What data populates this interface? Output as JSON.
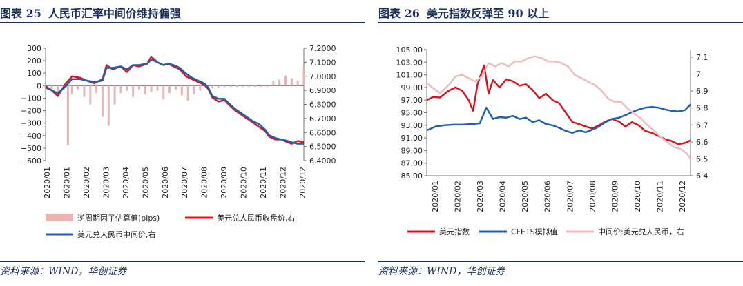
{
  "left": {
    "title_no": "图表 25",
    "title_text": "人民币汇率中间价维持偏强",
    "source": "资料来源：WIND，华创证券",
    "chart_data": {
      "type": "line",
      "categories": [
        "2020/01",
        "2020/01",
        "2020/02",
        "2020/03",
        "2020/04",
        "2020/05",
        "2020/06",
        "2020/07",
        "2020/08",
        "2020/09",
        "2020/10",
        "2020/11",
        "2020/12",
        "2020/12"
      ],
      "y_left_ticks": [
        "300",
        "200",
        "100",
        "0",
        "−100",
        "−200",
        "−300",
        "−400",
        "−500",
        "−600"
      ],
      "y_right_ticks": [
        "7.2000",
        "7.1000",
        "7.0000",
        "6.9000",
        "6.8000",
        "6.7000",
        "6.6000",
        "6.5000",
        "6.4000"
      ],
      "ylim_left": [
        -600,
        300
      ],
      "ylim_right": [
        6.4,
        7.2
      ],
      "series": [
        {
          "name": "逆周期因子估算值(pips)",
          "axis": "left",
          "kind": "bar",
          "color": "#e8b4b4",
          "x": [
            0.0,
            0.3,
            0.6,
            0.9,
            1.1,
            1.3,
            1.6,
            1.9,
            2.2,
            2.5,
            2.8,
            3.1,
            3.4,
            3.7,
            4.0,
            4.3,
            4.6,
            4.9,
            5.2,
            5.5,
            5.8,
            6.1,
            6.4,
            6.7,
            7.0,
            7.3,
            7.6,
            7.9,
            8.2,
            8.5,
            8.8,
            9.1,
            9.4,
            9.7,
            10.0,
            10.3,
            10.6,
            10.9,
            11.2,
            11.5,
            11.8,
            12.1,
            12.4,
            12.7
          ],
          "values": [
            -20,
            -40,
            -90,
            -30,
            -480,
            -70,
            -30,
            -90,
            -150,
            -60,
            -250,
            -320,
            -150,
            -60,
            -40,
            -90,
            -30,
            -70,
            -50,
            -40,
            -110,
            -60,
            -30,
            -80,
            -120,
            -70,
            -40,
            -20,
            -20,
            -20,
            -10,
            -10,
            -10,
            -10,
            -10,
            -10,
            -10,
            -10,
            40,
            50,
            80,
            60,
            40,
            140
          ]
        },
        {
          "name": "美元兑人民币收盘价,右",
          "axis": "right",
          "kind": "line",
          "color": "#d9141e",
          "x": [
            0.0,
            0.3,
            0.6,
            1.0,
            1.3,
            1.7,
            2.0,
            2.4,
            2.8,
            3.0,
            3.3,
            3.7,
            4.0,
            4.3,
            4.6,
            5.0,
            5.2,
            5.5,
            5.8,
            6.0,
            6.3,
            6.6,
            6.9,
            7.2,
            7.5,
            7.8,
            8.0,
            8.2,
            8.5,
            8.8,
            9.0,
            9.3,
            9.6,
            9.9,
            10.2,
            10.5,
            10.8,
            11.0,
            11.3,
            11.6,
            11.9,
            12.1,
            12.4,
            12.7
          ],
          "values": [
            6.93,
            6.9,
            6.86,
            6.95,
            7.0,
            6.99,
            6.97,
            6.95,
            6.98,
            7.08,
            7.05,
            7.07,
            7.03,
            7.08,
            7.07,
            7.09,
            7.14,
            7.1,
            7.08,
            7.09,
            7.07,
            7.05,
            7.0,
            6.98,
            6.96,
            6.94,
            6.91,
            6.85,
            6.82,
            6.83,
            6.8,
            6.76,
            6.73,
            6.7,
            6.67,
            6.64,
            6.61,
            6.57,
            6.55,
            6.55,
            6.53,
            6.52,
            6.54,
            6.53
          ]
        },
        {
          "name": "美元兑人民币中间价,右",
          "axis": "right",
          "kind": "line",
          "color": "#1f5fa8",
          "x": [
            0.0,
            0.3,
            0.6,
            1.0,
            1.3,
            1.7,
            2.0,
            2.4,
            2.8,
            3.0,
            3.3,
            3.7,
            4.0,
            4.3,
            4.6,
            5.0,
            5.2,
            5.5,
            5.8,
            6.0,
            6.3,
            6.6,
            6.9,
            7.2,
            7.5,
            7.8,
            8.0,
            8.2,
            8.5,
            8.8,
            9.0,
            9.3,
            9.6,
            9.9,
            10.2,
            10.5,
            10.8,
            11.0,
            11.3,
            11.6,
            11.9,
            12.1,
            12.4,
            12.7
          ],
          "values": [
            6.92,
            6.9,
            6.88,
            6.93,
            6.98,
            6.98,
            6.97,
            6.96,
            6.97,
            7.06,
            7.06,
            7.07,
            7.05,
            7.08,
            7.08,
            7.09,
            7.12,
            7.1,
            7.08,
            7.09,
            7.08,
            7.06,
            7.02,
            6.99,
            6.97,
            6.95,
            6.92,
            6.86,
            6.84,
            6.84,
            6.81,
            6.77,
            6.74,
            6.71,
            6.68,
            6.66,
            6.62,
            6.58,
            6.56,
            6.55,
            6.54,
            6.53,
            6.52,
            6.52
          ]
        }
      ]
    }
  },
  "right": {
    "title_no": "图表 26",
    "title_text": "美元指数反弹至 90 以上",
    "source": "资料来源：WIND，华创证券",
    "chart_data": {
      "type": "line",
      "categories": [
        "2020/01",
        "2020/02",
        "2020/03",
        "2020/04",
        "2020/05",
        "2020/06",
        "2020/07",
        "2020/08",
        "2020/09",
        "2020/10",
        "2020/11",
        "2020/12"
      ],
      "y_left_ticks": [
        "105.00",
        "103.00",
        "101.00",
        "99.00",
        "97.00",
        "95.00",
        "93.00",
        "91.00",
        "89.00",
        "87.00",
        "85.00"
      ],
      "y_right_ticks": [
        "7.1",
        "7",
        "6.9",
        "6.8",
        "6.7",
        "6.6",
        "6.5",
        "6.4"
      ],
      "ylim_left": [
        85,
        105
      ],
      "ylim_right": [
        6.4,
        7.15
      ],
      "series": [
        {
          "name": "美元指数",
          "axis": "left",
          "kind": "line",
          "color": "#d9141e",
          "x": [
            0.0,
            0.3,
            0.6,
            1.0,
            1.3,
            1.6,
            1.9,
            2.1,
            2.3,
            2.6,
            2.8,
            3.0,
            3.3,
            3.6,
            3.9,
            4.2,
            4.5,
            4.8,
            5.1,
            5.4,
            5.7,
            6.0,
            6.3,
            6.6,
            6.9,
            7.2,
            7.5,
            7.8,
            8.1,
            8.4,
            8.7,
            9.0,
            9.3,
            9.6,
            9.9,
            10.2,
            10.5,
            10.8,
            11.1,
            11.4,
            11.7,
            11.95
          ],
          "values": [
            97.0,
            97.5,
            97.4,
            98.5,
            99.0,
            98.5,
            97.0,
            95.3,
            99.5,
            102.5,
            98.0,
            100.2,
            99.0,
            100.3,
            100.0,
            99.3,
            99.5,
            98.6,
            97.3,
            98.0,
            97.0,
            96.5,
            95.0,
            93.5,
            93.2,
            92.8,
            92.5,
            93.0,
            93.6,
            94.0,
            93.6,
            92.8,
            93.5,
            93.0,
            92.1,
            91.8,
            91.3,
            90.8,
            90.5,
            90.0,
            90.2,
            90.6
          ]
        },
        {
          "name": "CFETS模拟值",
          "axis": "left",
          "kind": "line",
          "color": "#1f5fa8",
          "x": [
            0.0,
            0.4,
            0.8,
            1.2,
            1.6,
            2.0,
            2.4,
            2.7,
            3.0,
            3.3,
            3.6,
            3.9,
            4.2,
            4.5,
            4.8,
            5.1,
            5.4,
            5.7,
            6.0,
            6.3,
            6.6,
            6.9,
            7.2,
            7.5,
            7.8,
            8.1,
            8.4,
            8.7,
            9.0,
            9.3,
            9.6,
            9.9,
            10.2,
            10.5,
            10.8,
            11.1,
            11.4,
            11.7,
            11.95
          ],
          "values": [
            92.2,
            92.8,
            93.0,
            93.1,
            93.1,
            93.2,
            93.3,
            95.8,
            94.0,
            94.3,
            94.2,
            94.5,
            94.0,
            94.2,
            93.5,
            93.8,
            93.2,
            93.0,
            92.6,
            92.1,
            91.8,
            92.2,
            91.9,
            92.3,
            92.8,
            93.5,
            94.0,
            94.2,
            94.6,
            95.1,
            95.5,
            95.8,
            95.9,
            95.8,
            95.5,
            95.3,
            95.2,
            95.4,
            96.3
          ]
        },
        {
          "name": "中间价:美元兑人民币，右",
          "axis": "right",
          "kind": "line",
          "color": "#eebcbc",
          "x": [
            0.0,
            0.3,
            0.6,
            1.0,
            1.3,
            1.6,
            1.9,
            2.2,
            2.5,
            2.8,
            3.1,
            3.4,
            3.7,
            4.0,
            4.3,
            4.6,
            4.9,
            5.2,
            5.5,
            5.8,
            6.1,
            6.4,
            6.7,
            7.0,
            7.3,
            7.6,
            7.9,
            8.2,
            8.5,
            8.8,
            9.1,
            9.4,
            9.7,
            10.0,
            10.3,
            10.6,
            10.9,
            11.2,
            11.5,
            11.8,
            11.95
          ],
          "values": [
            6.95,
            6.92,
            6.89,
            6.94,
            6.99,
            7.0,
            6.98,
            6.96,
            6.99,
            7.07,
            7.05,
            7.07,
            7.05,
            7.08,
            7.08,
            7.1,
            7.11,
            7.1,
            7.08,
            7.08,
            7.07,
            7.05,
            7.0,
            6.98,
            6.96,
            6.94,
            6.91,
            6.86,
            6.84,
            6.84,
            6.8,
            6.77,
            6.74,
            6.7,
            6.67,
            6.63,
            6.6,
            6.57,
            6.56,
            6.53,
            6.5
          ]
        }
      ]
    }
  }
}
